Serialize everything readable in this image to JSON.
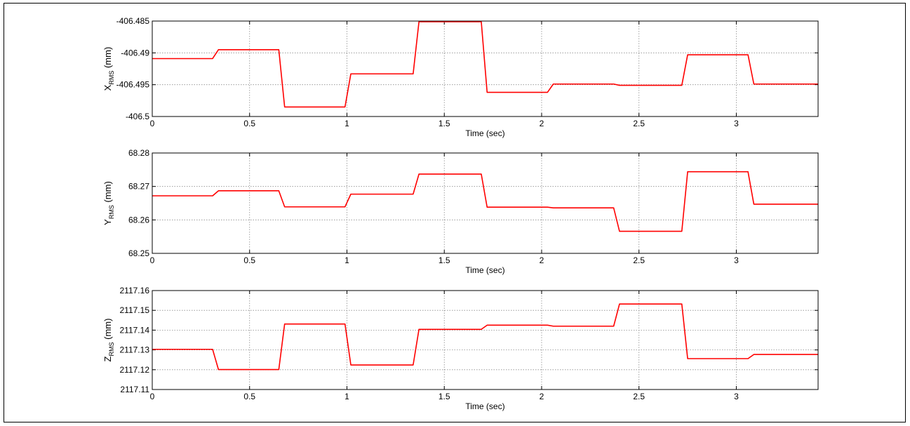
{
  "chart_data": [
    {
      "type": "line",
      "xlabel": "Time (sec)",
      "ylabel_main": "X",
      "ylabel_sub": "RMS",
      "ylabel_unit": " (mm)",
      "xlim": [
        0,
        3.42
      ],
      "ylim": [
        -406.5,
        -406.485
      ],
      "xticks": [
        0,
        0.5,
        1,
        1.5,
        2,
        2.5,
        3
      ],
      "xtick_labels": [
        "0",
        "0.5",
        "1",
        "1.5",
        "2",
        "2.5",
        "3"
      ],
      "yticks": [
        -406.5,
        -406.495,
        -406.49,
        -406.485
      ],
      "ytick_labels": [
        "-406.5",
        "-406.495",
        "-406.49",
        "-406.485"
      ],
      "grid": true,
      "color": "#ff0000",
      "series": [
        {
          "x": [
            0,
            0.31,
            0.34,
            0.65,
            0.68,
            0.99,
            1.02,
            1.34,
            1.37,
            1.69,
            1.72,
            2.03,
            2.06,
            2.37,
            2.4,
            2.72,
            2.75,
            3.06,
            3.09,
            3.42
          ],
          "y": [
            -406.4909,
            -406.4909,
            -406.4895,
            -406.4895,
            -406.4985,
            -406.4985,
            -406.4933,
            -406.4933,
            -406.4851,
            -406.4851,
            -406.4962,
            -406.4962,
            -406.4949,
            -406.4949,
            -406.4951,
            -406.4951,
            -406.4903,
            -406.4903,
            -406.4949,
            -406.4949
          ]
        }
      ]
    },
    {
      "type": "line",
      "xlabel": "Time (sec)",
      "ylabel_main": "Y",
      "ylabel_sub": "RMS",
      "ylabel_unit": " (mm)",
      "xlim": [
        0,
        3.42
      ],
      "ylim": [
        68.25,
        68.28
      ],
      "xticks": [
        0,
        0.5,
        1,
        1.5,
        2,
        2.5,
        3
      ],
      "xtick_labels": [
        "0",
        "0.5",
        "1",
        "1.5",
        "2",
        "2.5",
        "3"
      ],
      "yticks": [
        68.25,
        68.26,
        68.27,
        68.28
      ],
      "ytick_labels": [
        "68.25",
        "68.26",
        "68.27",
        "68.28"
      ],
      "grid": true,
      "color": "#ff0000",
      "series": [
        {
          "x": [
            0,
            0.31,
            0.34,
            0.65,
            0.68,
            0.99,
            1.02,
            1.34,
            1.37,
            1.69,
            1.72,
            2.03,
            2.06,
            2.37,
            2.4,
            2.72,
            2.75,
            3.06,
            3.09,
            3.42
          ],
          "y": [
            68.2672,
            68.2672,
            68.2687,
            68.2687,
            68.2639,
            68.2639,
            68.2677,
            68.2677,
            68.2737,
            68.2737,
            68.2638,
            68.2638,
            68.2636,
            68.2636,
            68.2566,
            68.2566,
            68.2744,
            68.2744,
            68.2647,
            68.2647
          ]
        }
      ]
    },
    {
      "type": "line",
      "xlabel": "Time (sec)",
      "ylabel_main": "Z",
      "ylabel_sub": "RMS",
      "ylabel_unit": " (mm)",
      "xlim": [
        0,
        3.42
      ],
      "ylim": [
        2117.11,
        2117.16
      ],
      "xticks": [
        0,
        0.5,
        1,
        1.5,
        2,
        2.5,
        3
      ],
      "xtick_labels": [
        "0",
        "0.5",
        "1",
        "1.5",
        "2",
        "2.5",
        "3"
      ],
      "yticks": [
        2117.11,
        2117.12,
        2117.13,
        2117.14,
        2117.15,
        2117.16
      ],
      "ytick_labels": [
        "2117.11",
        "2117.12",
        "2117.13",
        "2117.14",
        "2117.15",
        "2117.16"
      ],
      "grid": true,
      "color": "#ff0000",
      "series": [
        {
          "x": [
            0,
            0.31,
            0.34,
            0.65,
            0.68,
            0.99,
            1.02,
            1.34,
            1.37,
            1.69,
            1.72,
            2.03,
            2.06,
            2.37,
            2.4,
            2.72,
            2.75,
            3.06,
            3.09,
            3.42
          ],
          "y": [
            2117.1303,
            2117.1303,
            2117.1201,
            2117.1201,
            2117.1431,
            2117.1431,
            2117.1224,
            2117.1224,
            2117.1404,
            2117.1404,
            2117.1425,
            2117.1425,
            2117.142,
            2117.142,
            2117.1532,
            2117.1532,
            2117.1256,
            2117.1256,
            2117.1277,
            2117.1277
          ]
        }
      ]
    }
  ]
}
